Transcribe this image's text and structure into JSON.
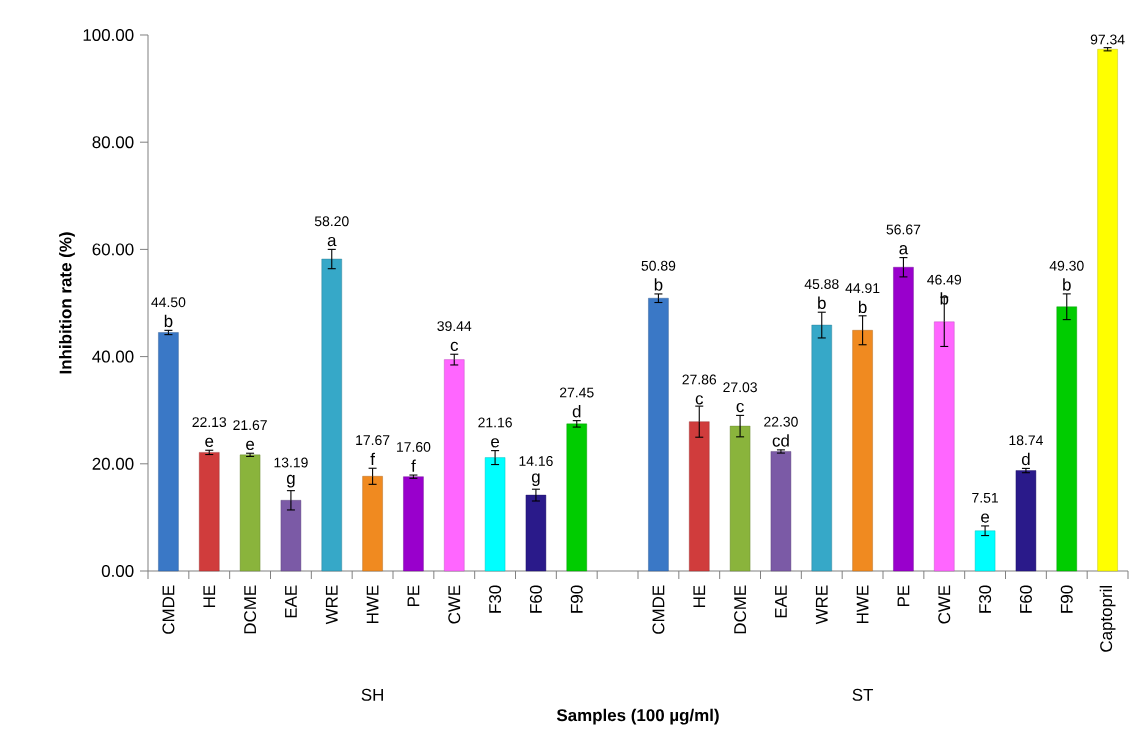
{
  "chart_data": {
    "type": "bar",
    "xlabel": "Samples (100 µg/ml)",
    "ylabel": "Inhibition rate (%)",
    "categories": [
      "CMDE",
      "HE",
      "DCME",
      "EAE",
      "WRE",
      "HWE",
      "PE",
      "CWE",
      "F30",
      "F60",
      "F90",
      null,
      "CMDE",
      "HE",
      "DCME",
      "EAE",
      "WRE",
      "HWE",
      "PE",
      "CWE",
      "F30",
      "F60",
      "F90",
      "Captopril"
    ],
    "values": [
      44.5,
      22.13,
      21.67,
      13.19,
      58.2,
      17.67,
      17.6,
      39.44,
      21.16,
      14.16,
      27.45,
      null,
      50.89,
      27.86,
      27.03,
      22.3,
      45.88,
      44.91,
      56.67,
      46.49,
      7.51,
      18.74,
      49.3,
      97.34
    ],
    "value_labels": [
      "44.50",
      "22.13",
      "21.67",
      "13.19",
      "58.20",
      "17.67",
      "17.60",
      "39.44",
      "21.16",
      "14.16",
      "27.45",
      null,
      "50.89",
      "27.86",
      "27.03",
      "22.30",
      "45.88",
      "44.91",
      "56.67",
      "46.49",
      "7.51",
      "18.74",
      "49.30",
      "97.34"
    ],
    "errors": [
      0.4,
      0.4,
      0.3,
      1.8,
      1.8,
      1.5,
      0.3,
      1.0,
      1.3,
      1.1,
      0.6,
      null,
      0.8,
      2.9,
      2.0,
      0.3,
      2.4,
      2.7,
      1.8,
      4.6,
      0.9,
      0.4,
      2.4,
      0.3
    ],
    "colors": [
      "#3a78c6",
      "#d03c3c",
      "#8ab43c",
      "#7b5aa6",
      "#36a8c8",
      "#f08a20",
      "#9900cc",
      "#ff66ff",
      "#00ffff",
      "#2a1a8a",
      "#00cc00",
      "#ffffff",
      "#3a78c6",
      "#d03c3c",
      "#8ab43c",
      "#7b5aa6",
      "#36a8c8",
      "#f08a20",
      "#9900cc",
      "#ff66ff",
      "#00ffff",
      "#2a1a8a",
      "#00cc00",
      "#ffff00"
    ],
    "ylim": [
      0,
      100
    ],
    "yticks": [
      {
        "value": 0,
        "label": "0.00"
      },
      {
        "value": 20,
        "label": "20.00"
      },
      {
        "value": 40,
        "label": "40.00"
      },
      {
        "value": 60,
        "label": "60.00"
      },
      {
        "value": 80,
        "label": "80.00"
      },
      {
        "value": 100,
        "label": "100.00"
      }
    ],
    "annotations": [
      "b",
      "e",
      "e",
      "g",
      "a",
      "f",
      "f",
      "c",
      "e",
      "g",
      "d",
      "b",
      "c",
      "c",
      "cd",
      "b",
      "b",
      "a",
      "b",
      "e",
      "d",
      "b",
      "SH",
      "ST"
    ]
  }
}
